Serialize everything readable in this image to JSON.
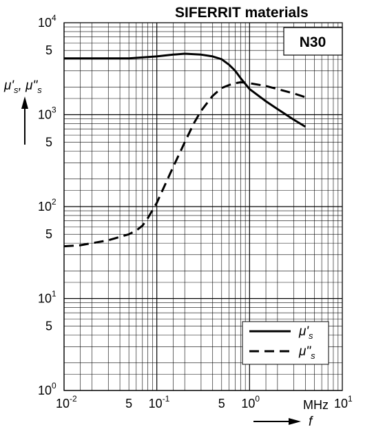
{
  "chart_data": {
    "type": "line",
    "title": "SIFERRIT materials",
    "material_label": "N30",
    "x_scale": "log",
    "y_scale": "log",
    "xlim": [
      0.01,
      10
    ],
    "ylim": [
      1,
      10000
    ],
    "grid": true,
    "legend_position": "bottom-right",
    "x_unit_label": "MHz",
    "x_axis_symbol": "f",
    "y_axis_symbols": [
      "μ's",
      "μ\"s"
    ],
    "x_ticks": [
      {
        "value": 0.01,
        "base": "10",
        "exp": "-2"
      },
      {
        "value": 0.05,
        "base": "5",
        "exp": ""
      },
      {
        "value": 0.1,
        "base": "10",
        "exp": "-1"
      },
      {
        "value": 0.5,
        "base": "5",
        "exp": ""
      },
      {
        "value": 1,
        "base": "10",
        "exp": "0"
      },
      {
        "value": 10,
        "base": "10",
        "exp": "1"
      }
    ],
    "y_ticks": [
      {
        "value": 1,
        "base": "10",
        "exp": "0"
      },
      {
        "value": 5,
        "base": "5",
        "exp": ""
      },
      {
        "value": 10,
        "base": "10",
        "exp": "1"
      },
      {
        "value": 50,
        "base": "5",
        "exp": ""
      },
      {
        "value": 100,
        "base": "10",
        "exp": "2"
      },
      {
        "value": 500,
        "base": "5",
        "exp": ""
      },
      {
        "value": 1000,
        "base": "10",
        "exp": "3"
      },
      {
        "value": 5000,
        "base": "5",
        "exp": ""
      },
      {
        "value": 10000,
        "base": "10",
        "exp": "4"
      }
    ],
    "series": [
      {
        "name": "μ's",
        "style": "solid",
        "x": [
          0.01,
          0.02,
          0.05,
          0.1,
          0.15,
          0.2,
          0.3,
          0.4,
          0.5,
          0.6,
          0.7,
          0.8,
          1.0,
          1.5,
          2.0,
          3.0,
          4.0
        ],
        "y": [
          4100,
          4100,
          4100,
          4300,
          4500,
          4600,
          4500,
          4300,
          4000,
          3500,
          3000,
          2500,
          1900,
          1400,
          1150,
          880,
          740
        ]
      },
      {
        "name": "μ\"s",
        "style": "dashed",
        "x": [
          0.01,
          0.015,
          0.02,
          0.03,
          0.05,
          0.06,
          0.07,
          0.08,
          0.1,
          0.15,
          0.2,
          0.25,
          0.3,
          0.4,
          0.5,
          0.6,
          0.7,
          0.8,
          0.9,
          1.0,
          1.5,
          2.0,
          3.0,
          4.0
        ],
        "y": [
          37,
          38,
          40,
          43,
          50,
          55,
          62,
          75,
          110,
          270,
          500,
          800,
          1100,
          1600,
          1950,
          2100,
          2200,
          2250,
          2230,
          2200,
          2050,
          1900,
          1700,
          1550
        ]
      }
    ]
  }
}
